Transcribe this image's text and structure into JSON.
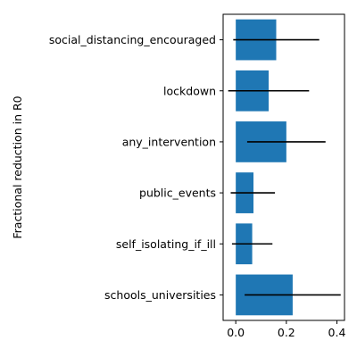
{
  "chart_data": {
    "type": "bar",
    "orientation": "horizontal",
    "ylabel": "Fractional reduction in R0",
    "categories": [
      "social_distancing_encouraged",
      "lockdown",
      "any_intervention",
      "public_events",
      "self_isolating_if_ill",
      "schools_universities"
    ],
    "values": [
      0.16,
      0.13,
      0.2,
      0.07,
      0.065,
      0.225
    ],
    "error_low": [
      -0.01,
      -0.03,
      0.045,
      -0.02,
      -0.015,
      0.035
    ],
    "error_high": [
      0.33,
      0.29,
      0.355,
      0.155,
      0.145,
      0.415
    ],
    "xlim": [
      -0.05,
      0.43
    ],
    "xticks": [
      0.0,
      0.2,
      0.4
    ],
    "xtick_labels": [
      "0.0",
      "0.2",
      "0.4"
    ],
    "bar_color": "#1f77b4",
    "error_color": "#000000",
    "grid": false,
    "legend": "none"
  }
}
